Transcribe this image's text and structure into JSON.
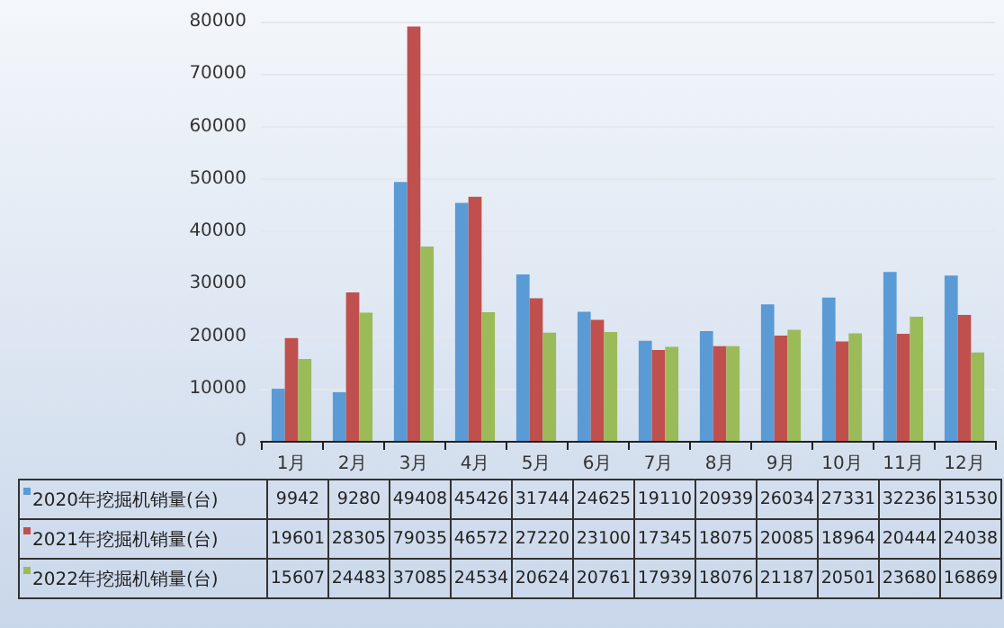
{
  "chart_data": {
    "type": "bar",
    "categories": [
      "1月",
      "2月",
      "3月",
      "4月",
      "5月",
      "6月",
      "7月",
      "8月",
      "9月",
      "10月",
      "11月",
      "12月"
    ],
    "series": [
      {
        "name": "2020年挖掘机销量(台)",
        "color": "#5b9bd5",
        "values": [
          9942,
          9280,
          49408,
          45426,
          31744,
          24625,
          19110,
          20939,
          26034,
          27331,
          32236,
          31530
        ]
      },
      {
        "name": "2021年挖掘机销量(台)",
        "color": "#c0504d",
        "values": [
          19601,
          28305,
          79035,
          46572,
          27220,
          23100,
          17345,
          18075,
          20085,
          18964,
          20444,
          24038
        ]
      },
      {
        "name": "2022年挖掘机销量(台)",
        "color": "#9bbb59",
        "values": [
          15607,
          24483,
          37085,
          24534,
          20624,
          20761,
          17939,
          18076,
          21187,
          20501,
          23680,
          16869
        ]
      }
    ],
    "ylim": [
      0,
      80000
    ],
    "yticks": [
      0,
      10000,
      20000,
      30000,
      40000,
      50000,
      60000,
      70000,
      80000
    ],
    "grid": "y",
    "data_labels": true,
    "legend": "bottom left"
  }
}
